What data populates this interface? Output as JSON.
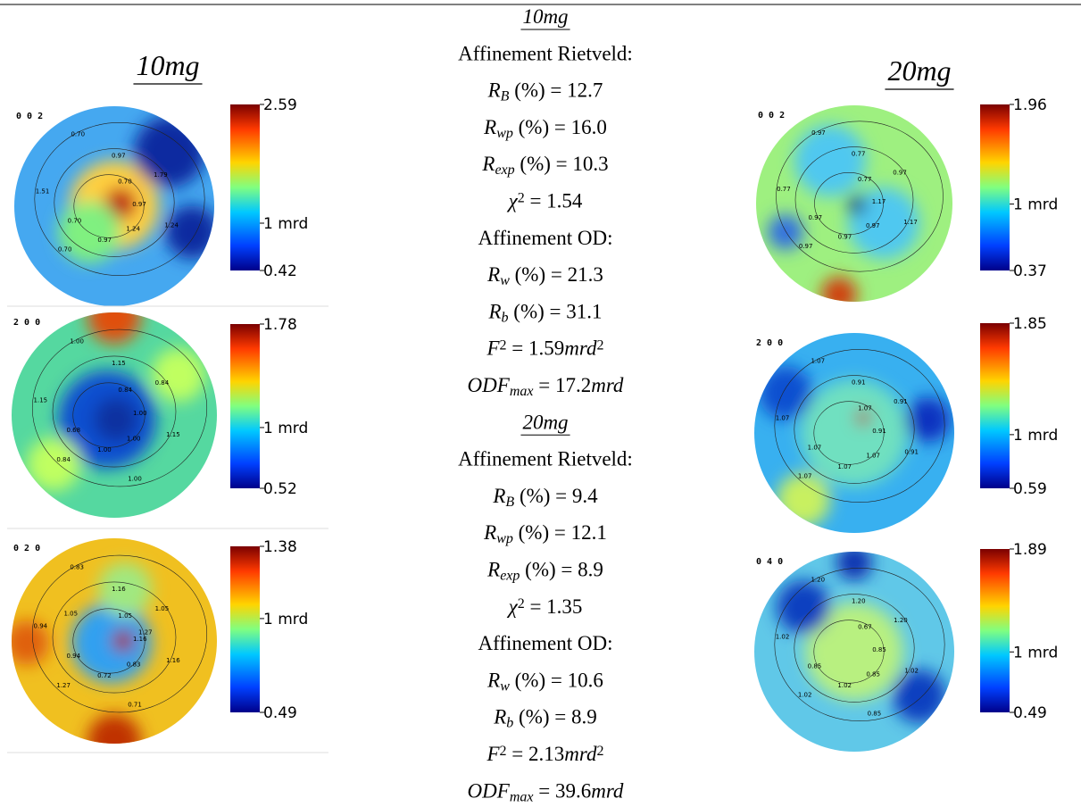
{
  "left": {
    "title": "10mg",
    "panels": [
      {
        "label": "0 0 2",
        "max": 2.59,
        "mid": "1 mrd",
        "min": 0.42,
        "contours": [
          "0.97",
          "0.70",
          "0.97",
          "1.24",
          "1.51",
          "1.79",
          "0.97",
          "0.70",
          "1.24",
          "0.70",
          "0.70"
        ]
      },
      {
        "label": "2 0 0",
        "max": 1.78,
        "mid": "1 mrd",
        "min": 0.52,
        "contours": [
          "1.00",
          "0.84",
          "1.15",
          "1.00",
          "1.15",
          "0.84",
          "1.00",
          "1.00",
          "1.15",
          "0.68",
          "0.84",
          "1.00"
        ]
      },
      {
        "label": "0 2 0",
        "max": 1.38,
        "mid": "1 mrd",
        "min": 0.49,
        "contours": [
          "1.16",
          "1.27",
          "1.16",
          "0.83",
          "0.94",
          "1.05",
          "0.72",
          "0.83",
          "1.16",
          "0.94",
          "1.05",
          "0.71",
          "1.05",
          "1.27"
        ]
      }
    ]
  },
  "right": {
    "title": "20mg",
    "panels": [
      {
        "label": "0 0 2",
        "max": 1.96,
        "mid": "1 mrd",
        "min": 0.37,
        "contours": [
          "1.17",
          "0.97",
          "0.77",
          "0.97",
          "0.77",
          "0.97",
          "0.97",
          "0.97",
          "1.17",
          "0.97",
          "0.77"
        ]
      },
      {
        "label": "2 0 0",
        "max": 1.85,
        "mid": "1 mrd",
        "min": 0.59,
        "contours": [
          "0.91",
          "1.07",
          "0.91",
          "1.07",
          "1.07",
          "0.91",
          "1.07",
          "1.07",
          "0.91",
          "1.07",
          "1.07"
        ]
      },
      {
        "label": "0 4 0",
        "max": 1.89,
        "mid": "1 mrd",
        "min": 0.49,
        "contours": [
          "0.85",
          "1.02",
          "1.20",
          "0.85",
          "1.02",
          "1.20",
          "1.02",
          "1.20",
          "1.02",
          "0.85",
          "0.67",
          "0.85"
        ]
      }
    ]
  },
  "center": {
    "sections": [
      {
        "title": "10mg",
        "rietveld_heading": "Affinement Rietveld:",
        "rietveld": [
          [
            {
              "text": "R",
              "style": "italic"
            },
            {
              "text": "B",
              "style": "sub"
            },
            {
              "text": " (%) = 12.7",
              "style": "plain"
            }
          ],
          [
            {
              "text": "R",
              "style": "italic"
            },
            {
              "text": "wp",
              "style": "sub"
            },
            {
              "text": " (%) = 16.0",
              "style": "plain"
            }
          ],
          [
            {
              "text": "R",
              "style": "italic"
            },
            {
              "text": "exp",
              "style": "sub"
            },
            {
              "text": " (%) = 10.3",
              "style": "plain"
            }
          ],
          [
            {
              "text": "χ",
              "style": "italic"
            },
            {
              "text": "2",
              "style": "sup"
            },
            {
              "text": " = 1.54",
              "style": "plain"
            }
          ]
        ],
        "od_heading": "Affinement OD:",
        "od": [
          [
            {
              "text": "R",
              "style": "italic"
            },
            {
              "text": "w",
              "style": "sub"
            },
            {
              "text": " (%) = 21.3",
              "style": "plain"
            }
          ],
          [
            {
              "text": "R",
              "style": "italic"
            },
            {
              "text": "b",
              "style": "sub"
            },
            {
              "text": " (%) = 31.1",
              "style": "plain"
            }
          ],
          [
            {
              "text": "F",
              "style": "italic"
            },
            {
              "text": "2",
              "style": "sup"
            },
            {
              "text": " = 1.59",
              "style": "plain"
            },
            {
              "text": "mrd",
              "style": "italic"
            },
            {
              "text": "2",
              "style": "sup"
            }
          ],
          [
            {
              "text": "ODF",
              "style": "italic"
            },
            {
              "text": "max",
              "style": "sub"
            },
            {
              "text": " = 17.2",
              "style": "plain"
            },
            {
              "text": "mrd",
              "style": "italic"
            }
          ]
        ]
      },
      {
        "title": "20mg",
        "rietveld_heading": "Affinement Rietveld:",
        "rietveld": [
          [
            {
              "text": "R",
              "style": "italic"
            },
            {
              "text": "B",
              "style": "sub"
            },
            {
              "text": " (%) = 9.4",
              "style": "plain"
            }
          ],
          [
            {
              "text": "R",
              "style": "italic"
            },
            {
              "text": "wp",
              "style": "sub"
            },
            {
              "text": " (%) = 12.1",
              "style": "plain"
            }
          ],
          [
            {
              "text": "R",
              "style": "italic"
            },
            {
              "text": "exp",
              "style": "sub"
            },
            {
              "text": " (%) = 8.9",
              "style": "plain"
            }
          ],
          [
            {
              "text": "χ",
              "style": "italic"
            },
            {
              "text": "2",
              "style": "sup"
            },
            {
              "text": " = 1.35",
              "style": "plain"
            }
          ]
        ],
        "od_heading": "Affinement OD:",
        "od": [
          [
            {
              "text": "R",
              "style": "italic"
            },
            {
              "text": "w",
              "style": "sub"
            },
            {
              "text": " (%) = 10.6",
              "style": "plain"
            }
          ],
          [
            {
              "text": "R",
              "style": "italic"
            },
            {
              "text": "b",
              "style": "sub"
            },
            {
              "text": " (%) = 8.9",
              "style": "plain"
            }
          ],
          [
            {
              "text": "F",
              "style": "italic"
            },
            {
              "text": "2",
              "style": "sup"
            },
            {
              "text": " = 2.13",
              "style": "plain"
            },
            {
              "text": "mrd",
              "style": "italic"
            },
            {
              "text": "2",
              "style": "sup"
            }
          ],
          [
            {
              "text": "ODF",
              "style": "italic"
            },
            {
              "text": "max",
              "style": "sub"
            },
            {
              "text": " = 39.6",
              "style": "plain"
            },
            {
              "text": "mrd",
              "style": "italic"
            }
          ]
        ]
      }
    ]
  }
}
